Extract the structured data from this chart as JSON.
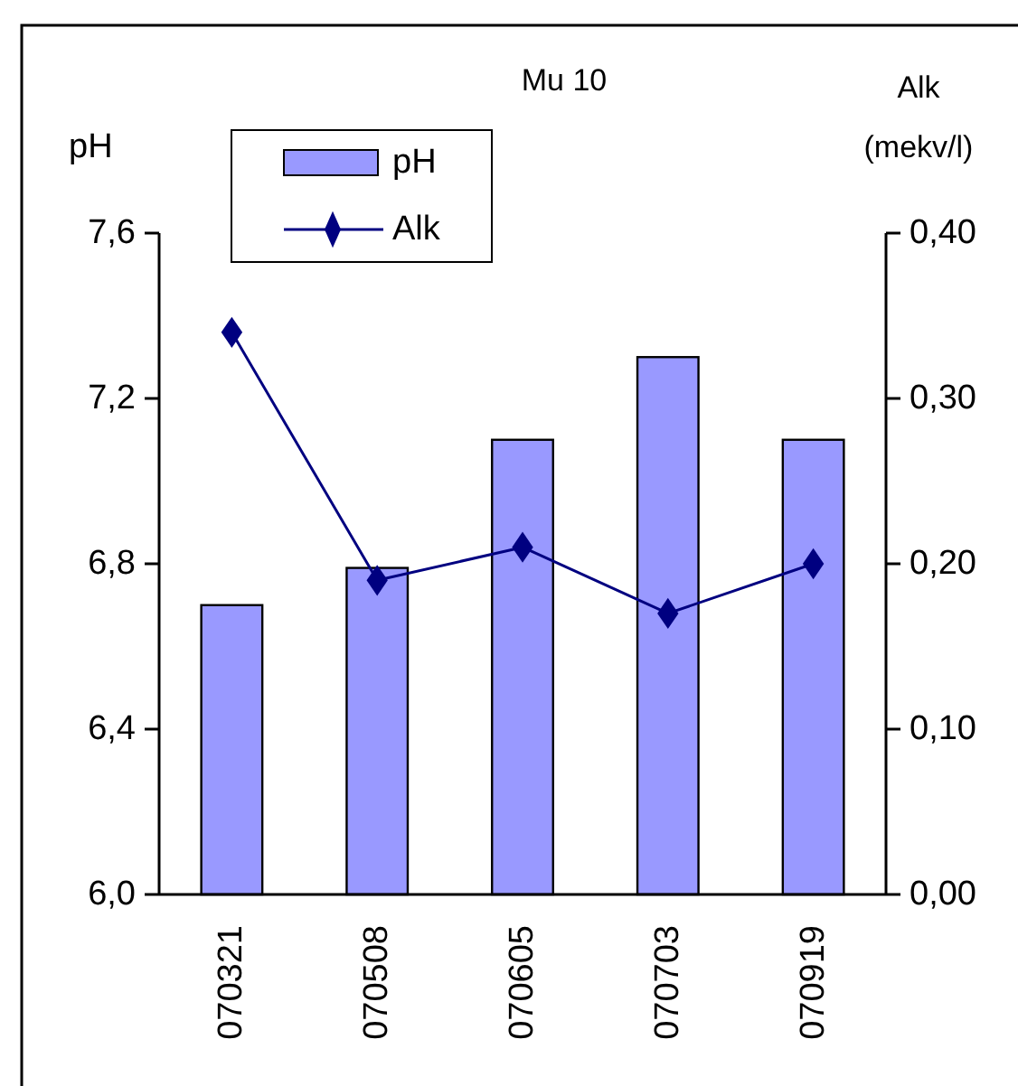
{
  "chart_data": {
    "type": "bar",
    "title": "Mu 10",
    "ylabel": "pH",
    "y2label": "Alk (mekv/l)",
    "categories": [
      "070321",
      "070508",
      "070605",
      "070703",
      "070919"
    ],
    "series": [
      {
        "name": "pH",
        "color": "#9999ff",
        "values": [
          6.7,
          6.79,
          7.1,
          7.3,
          7.1
        ]
      },
      {
        "name": "Alk",
        "type": "line",
        "axis": "y2",
        "color": "#000080",
        "marker": "diamond",
        "values": [
          0.34,
          0.19,
          0.21,
          0.17,
          0.2
        ]
      }
    ],
    "ylim": [
      6.0,
      7.6
    ],
    "yticks": [
      {
        "value": 6.0,
        "label": "6,0"
      },
      {
        "value": 6.4,
        "label": "6,4"
      },
      {
        "value": 6.8,
        "label": "6,8"
      },
      {
        "value": 7.2,
        "label": "7,2"
      },
      {
        "value": 7.6,
        "label": "7,6"
      }
    ],
    "y2lim": [
      0,
      0.4
    ],
    "y2ticks": [
      {
        "value": 0,
        "label": "0,00"
      },
      {
        "value": 0.1,
        "label": "0,10"
      },
      {
        "value": 0.2,
        "label": "0,20"
      },
      {
        "value": 0.3,
        "label": "0,30"
      },
      {
        "value": 0.4,
        "label": "0,40"
      }
    ],
    "legend": "top left",
    "grid": false
  }
}
